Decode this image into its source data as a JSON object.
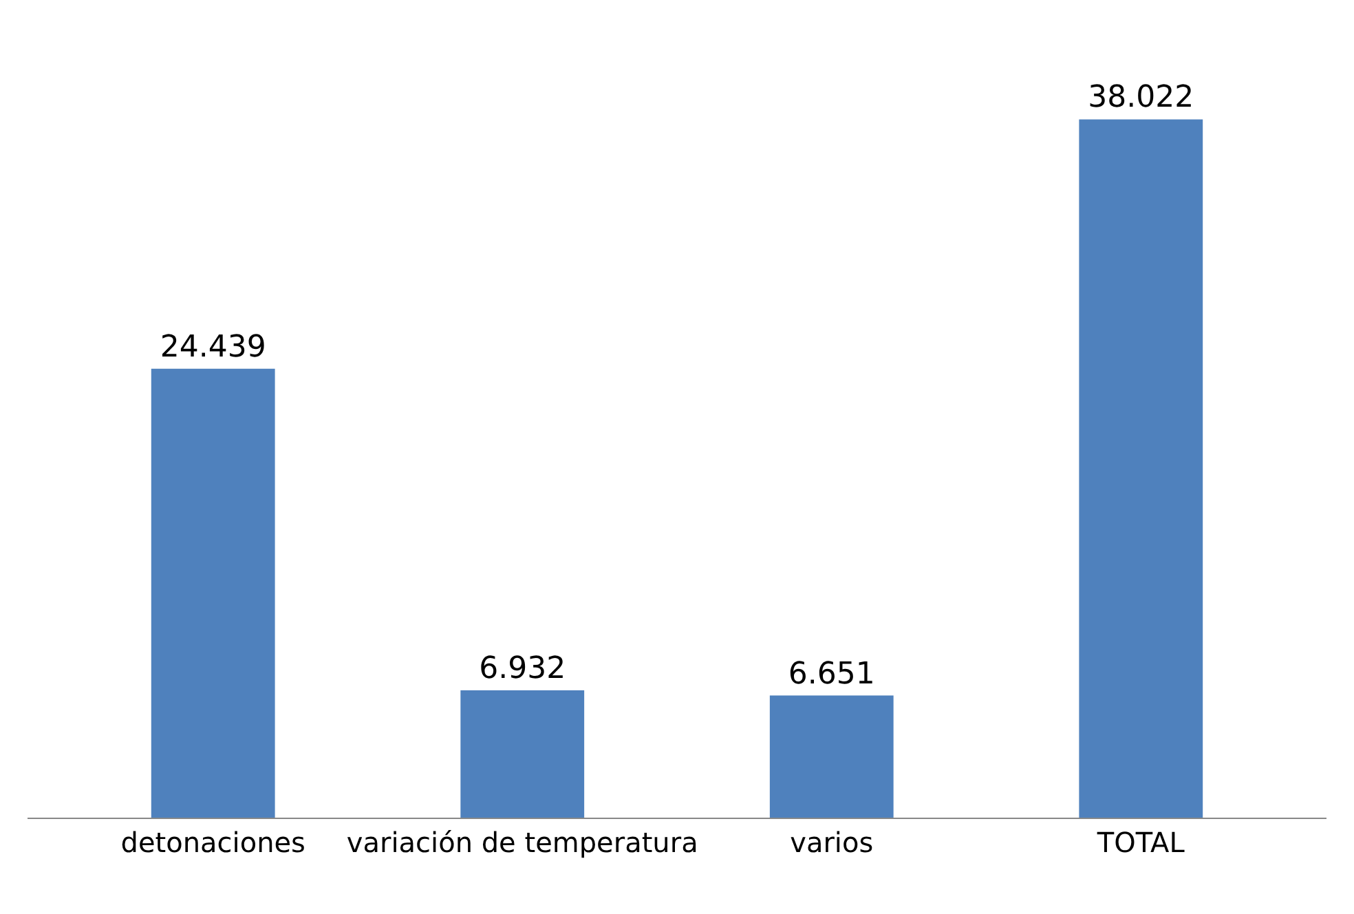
{
  "chart_data": {
    "type": "bar",
    "categories": [
      "detonaciones",
      "variación de temperatura",
      "varios",
      "TOTAL"
    ],
    "values": [
      24439,
      6932,
      6651,
      38022
    ],
    "value_labels": [
      "24.439",
      "6.932",
      "6.651",
      "38.022"
    ],
    "color": "#4f81bd",
    "grid": false,
    "legend": false
  }
}
